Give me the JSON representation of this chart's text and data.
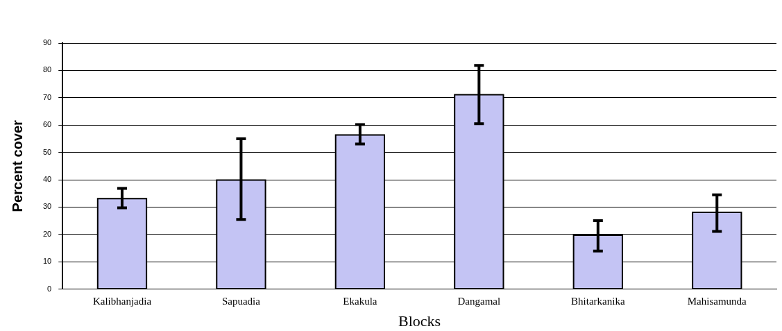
{
  "chart_data": {
    "type": "bar",
    "xlabel": "Blocks",
    "ylabel": "Percent cover",
    "categories": [
      "Kalibhanjadia",
      "Sapuadia",
      "Ekakula",
      "Dangamal",
      "Bhitarkanika",
      "Mahisamunda"
    ],
    "values": [
      33.1,
      39.9,
      56.4,
      71.1,
      19.7,
      28.1
    ],
    "errors": [
      [
        29.7,
        36.8
      ],
      [
        25.5,
        55.0
      ],
      [
        53.1,
        60.2
      ],
      [
        60.5,
        81.8
      ],
      [
        13.9,
        25.0
      ],
      [
        21.1,
        34.5
      ]
    ],
    "color": "#c4c4f4",
    "ylim": [
      0,
      90
    ],
    "yticks": [
      0,
      10,
      20,
      30,
      40,
      50,
      60,
      70,
      80,
      90
    ],
    "grid": "y",
    "legend": false
  }
}
